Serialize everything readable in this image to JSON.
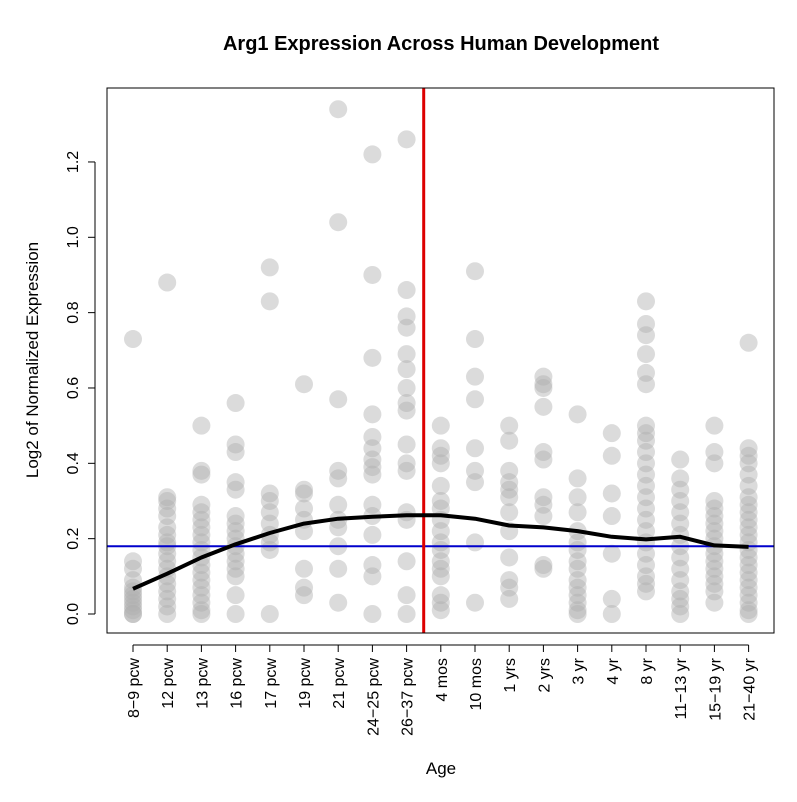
{
  "chart_data": {
    "type": "scatter",
    "title": "Arg1 Expression Across Human Development",
    "xlabel": "Age",
    "ylabel": "Log2 of Normalized Expression",
    "ylim": [
      -0.05,
      1.39
    ],
    "yticks": [
      "0.0",
      "0.2",
      "0.4",
      "0.6",
      "0.8",
      "1.0",
      "1.2"
    ],
    "categories": [
      "8−9 pcw",
      "12 pcw",
      "13 pcw",
      "16 pcw",
      "17 pcw",
      "19 pcw",
      "21 pcw",
      "24−25 pcw",
      "26−37 pcw",
      "4 mos",
      "10 mos",
      "1 yrs",
      "2 yrs",
      "3 yr",
      "4 yr",
      "8 yr",
      "11−13 yr",
      "15−19 yr",
      "21−40 yr"
    ],
    "points": [
      [
        0.73,
        0.14,
        0.12,
        0.09,
        0.07,
        0.06,
        0.05,
        0.04,
        0.03,
        0.02,
        0.01,
        0.0,
        0.0
      ],
      [
        0.88,
        0.31,
        0.3,
        0.28,
        0.26,
        0.23,
        0.21,
        0.19,
        0.18,
        0.16,
        0.14,
        0.12,
        0.1,
        0.08,
        0.06,
        0.04,
        0.02,
        0.0
      ],
      [
        0.5,
        0.38,
        0.37,
        0.29,
        0.27,
        0.25,
        0.23,
        0.21,
        0.19,
        0.17,
        0.15,
        0.13,
        0.11,
        0.09,
        0.07,
        0.05,
        0.03,
        0.01,
        0.0
      ],
      [
        0.56,
        0.45,
        0.43,
        0.35,
        0.33,
        0.26,
        0.24,
        0.22,
        0.2,
        0.18,
        0.16,
        0.14,
        0.12,
        0.1,
        0.05,
        0.0
      ],
      [
        0.92,
        0.83,
        0.32,
        0.3,
        0.27,
        0.24,
        0.21,
        0.19,
        0.17,
        0.0
      ],
      [
        0.61,
        0.33,
        0.32,
        0.28,
        0.25,
        0.22,
        0.12,
        0.07,
        0.05
      ],
      [
        1.34,
        1.04,
        0.57,
        0.38,
        0.36,
        0.29,
        0.25,
        0.23,
        0.18,
        0.12,
        0.03
      ],
      [
        1.22,
        0.9,
        0.68,
        0.53,
        0.47,
        0.44,
        0.41,
        0.39,
        0.37,
        0.29,
        0.26,
        0.21,
        0.13,
        0.1,
        0.0
      ],
      [
        1.26,
        0.86,
        0.79,
        0.76,
        0.69,
        0.65,
        0.6,
        0.56,
        0.54,
        0.45,
        0.4,
        0.38,
        0.27,
        0.25,
        0.14,
        0.05,
        0.0
      ],
      [
        0.5,
        0.44,
        0.42,
        0.4,
        0.34,
        0.3,
        0.28,
        0.25,
        0.22,
        0.19,
        0.17,
        0.14,
        0.12,
        0.1,
        0.05,
        0.03,
        0.01
      ],
      [
        0.91,
        0.73,
        0.63,
        0.57,
        0.44,
        0.38,
        0.35,
        0.19,
        0.03
      ],
      [
        0.5,
        0.46,
        0.38,
        0.35,
        0.33,
        0.31,
        0.27,
        0.22,
        0.15,
        0.09,
        0.07,
        0.04
      ],
      [
        0.63,
        0.61,
        0.6,
        0.55,
        0.43,
        0.41,
        0.31,
        0.29,
        0.26,
        0.13,
        0.12
      ],
      [
        0.53,
        0.36,
        0.31,
        0.27,
        0.22,
        0.19,
        0.17,
        0.14,
        0.12,
        0.09,
        0.07,
        0.05,
        0.03,
        0.01,
        0.0
      ],
      [
        0.48,
        0.42,
        0.32,
        0.26,
        0.16,
        0.04,
        0.0
      ],
      [
        0.83,
        0.77,
        0.74,
        0.69,
        0.64,
        0.61,
        0.5,
        0.48,
        0.46,
        0.43,
        0.4,
        0.37,
        0.34,
        0.31,
        0.28,
        0.25,
        0.22,
        0.19,
        0.16,
        0.13,
        0.1,
        0.08,
        0.06
      ],
      [
        0.41,
        0.36,
        0.33,
        0.3,
        0.27,
        0.24,
        0.21,
        0.18,
        0.15,
        0.12,
        0.09,
        0.06,
        0.04,
        0.02,
        0.0
      ],
      [
        0.5,
        0.43,
        0.4,
        0.3,
        0.28,
        0.26,
        0.24,
        0.22,
        0.2,
        0.18,
        0.16,
        0.14,
        0.12,
        0.1,
        0.08,
        0.06,
        0.03
      ],
      [
        0.72,
        0.44,
        0.42,
        0.4,
        0.37,
        0.34,
        0.31,
        0.29,
        0.27,
        0.25,
        0.23,
        0.21,
        0.19,
        0.17,
        0.15,
        0.13,
        0.11,
        0.09,
        0.07,
        0.05,
        0.03,
        0.01,
        0.0
      ]
    ],
    "trend": [
      0.067,
      0.107,
      0.15,
      0.185,
      0.215,
      0.24,
      0.253,
      0.258,
      0.262,
      0.262,
      0.253,
      0.235,
      0.23,
      0.22,
      0.205,
      0.198,
      0.205,
      0.182,
      0.178
    ],
    "hline_y": 0.18,
    "vline_after_category": "26−37 pcw",
    "colors": {
      "point": "#b0b0b0",
      "trend": "#000000",
      "hline": "#0000cc",
      "vline": "#dd0000"
    }
  }
}
